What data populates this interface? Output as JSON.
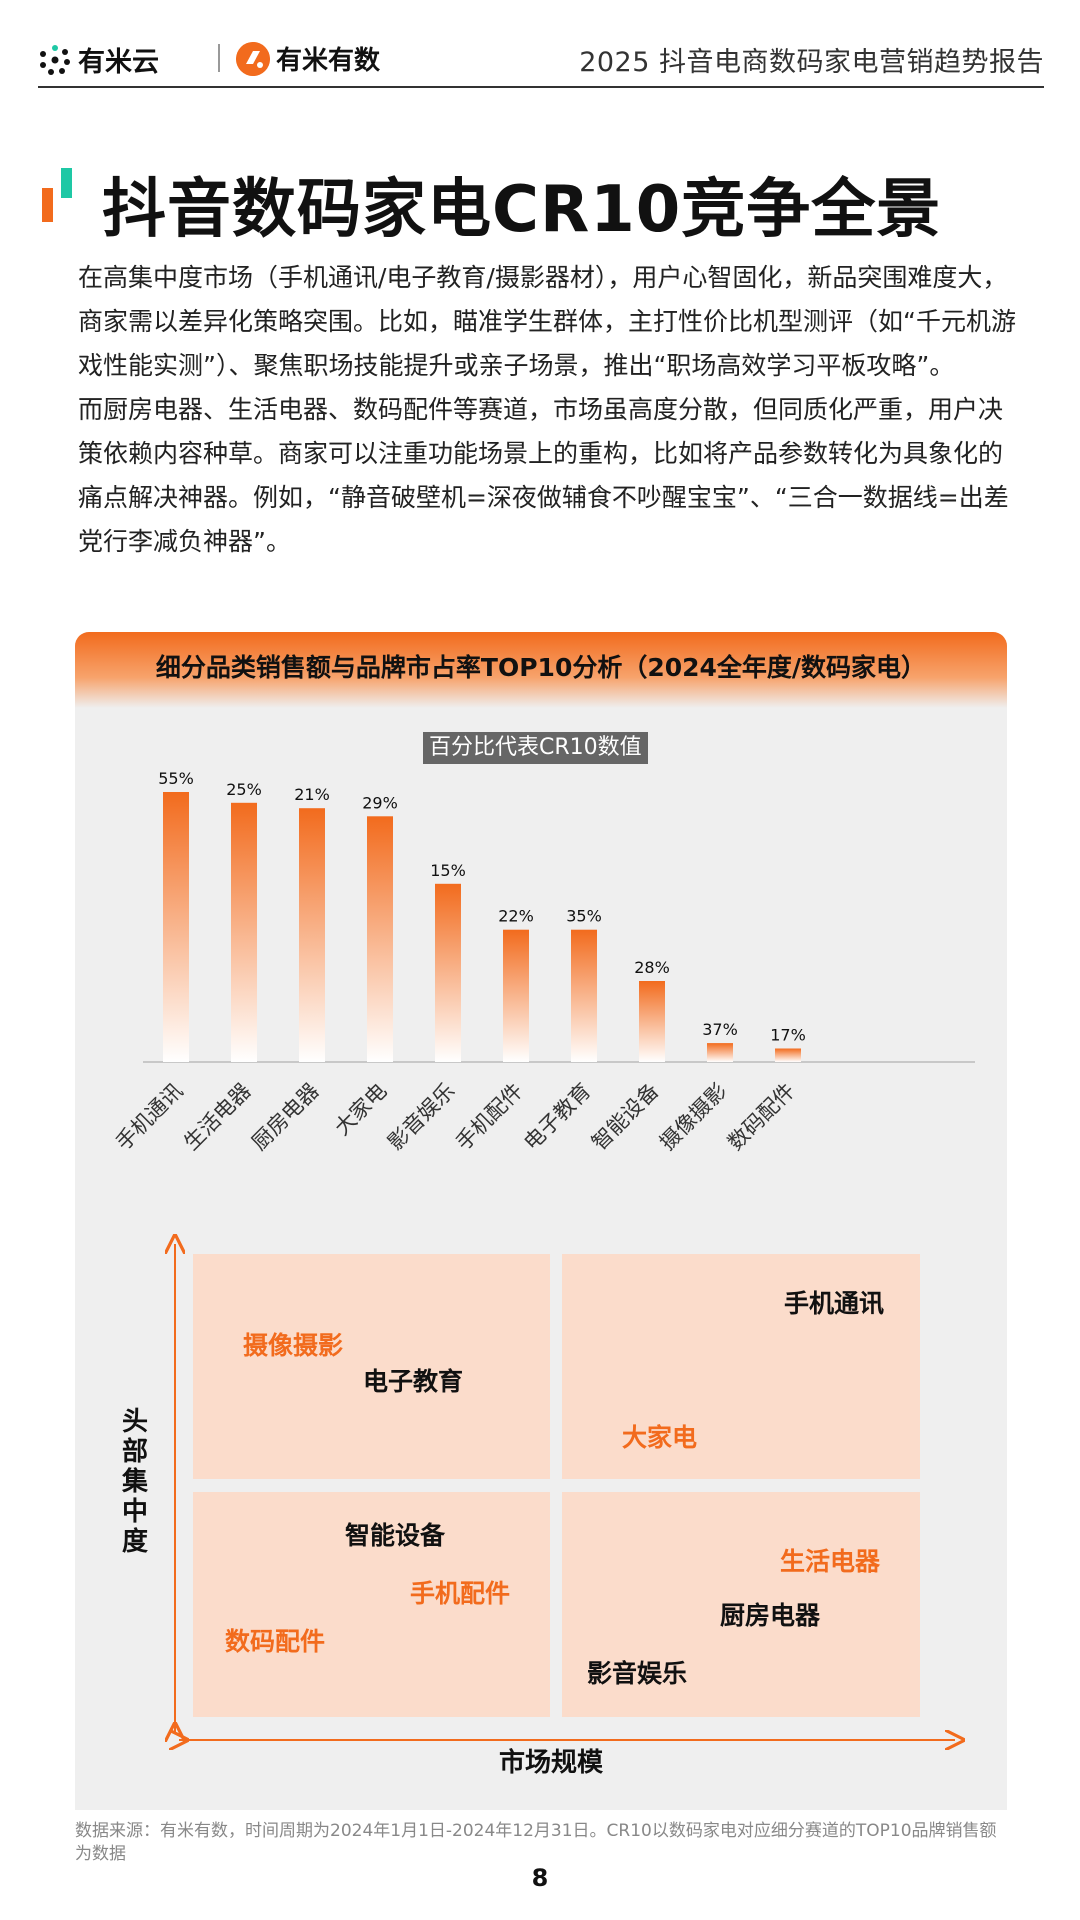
{
  "header": {
    "logo1_text": "有米云",
    "logo2_text": "有米有数",
    "report_title": "2025 抖音电商数码家电营销趋势报告"
  },
  "page_title": "抖音数码家电CR10竞争全景",
  "body": {
    "paragraph1": "在高集中度市场（手机通讯/电子教育/摄影器材），用户心智固化，新品突围难度大，商家需以差异化策略突围。比如，瞄准学生群体，主打性价比机型测评（如“千元机游戏性能实测”）、聚焦职场技能提升或亲子场景，推出“职场高效学习平板攻略”。",
    "paragraph2": "而厨房电器、生活电器、数码配件等赛道，市场虽高度分散，但同质化严重，用户决策依赖内容种草。商家可以注重功能场景上的重构，比如将产品参数转化为具象化的痛点解决神器。例如，“静音破壁机=深夜做辅食不吵醒宝宝”、“三合一数据线=出差党行李减负神器”。"
  },
  "chart_card": {
    "title": "细分品类销售额与品牌市占率TOP10分析（2024全年度/数码家电）",
    "subtitle": "百分比代表CR10数值"
  },
  "chart_data": [
    {
      "type": "bar",
      "title": "细分品类销售额与品牌市占率TOP10分析（2024全年度/数码家电）",
      "subtitle": "百分比代表CR10数值",
      "categories": [
        "手机通讯",
        "生活电器",
        "厨房电器",
        "大家电",
        "影音娱乐",
        "手机配件",
        "电子教育",
        "智能设备",
        "摄像摄影",
        "数码配件"
      ],
      "relative_sales": [
        100,
        96,
        94,
        91,
        66,
        49,
        49,
        30,
        7,
        5
      ],
      "value_labels": [
        "55%",
        "25%",
        "21%",
        "29%",
        "15%",
        "22%",
        "35%",
        "28%",
        "37%",
        "17%"
      ],
      "cr10": [
        55,
        25,
        21,
        29,
        15,
        22,
        35,
        28,
        37,
        17
      ],
      "bar_gradient": [
        "#f26b1d",
        "#ffffff"
      ]
    },
    {
      "type": "quadrant",
      "y_label": "头部集中度",
      "x_label": "市场规模",
      "quadrants": {
        "top_left": [
          {
            "label": "摄像摄影",
            "color": "orange"
          },
          {
            "label": "电子教育",
            "color": "dark"
          }
        ],
        "top_right": [
          {
            "label": "手机通讯",
            "color": "dark"
          },
          {
            "label": "大家电",
            "color": "orange"
          }
        ],
        "bottom_left": [
          {
            "label": "智能设备",
            "color": "dark"
          },
          {
            "label": "手机配件",
            "color": "orange"
          },
          {
            "label": "数码配件",
            "color": "orange"
          }
        ],
        "bottom_right": [
          {
            "label": "生活电器",
            "color": "orange"
          },
          {
            "label": "厨房电器",
            "color": "dark"
          },
          {
            "label": "影音娱乐",
            "color": "dark"
          }
        ]
      }
    }
  ],
  "colors": {
    "accent": "#f26b1d",
    "teal": "#1ec8a5",
    "quadrant_fill": "#fbdccb",
    "card_bg": "#efefef"
  },
  "footer": {
    "source": "数据来源：有米有数，时间周期为2024年1月1日-2024年12月31日。CR10以数码家电对应细分赛道的TOP10品牌销售额为数据",
    "page_number": "8"
  }
}
